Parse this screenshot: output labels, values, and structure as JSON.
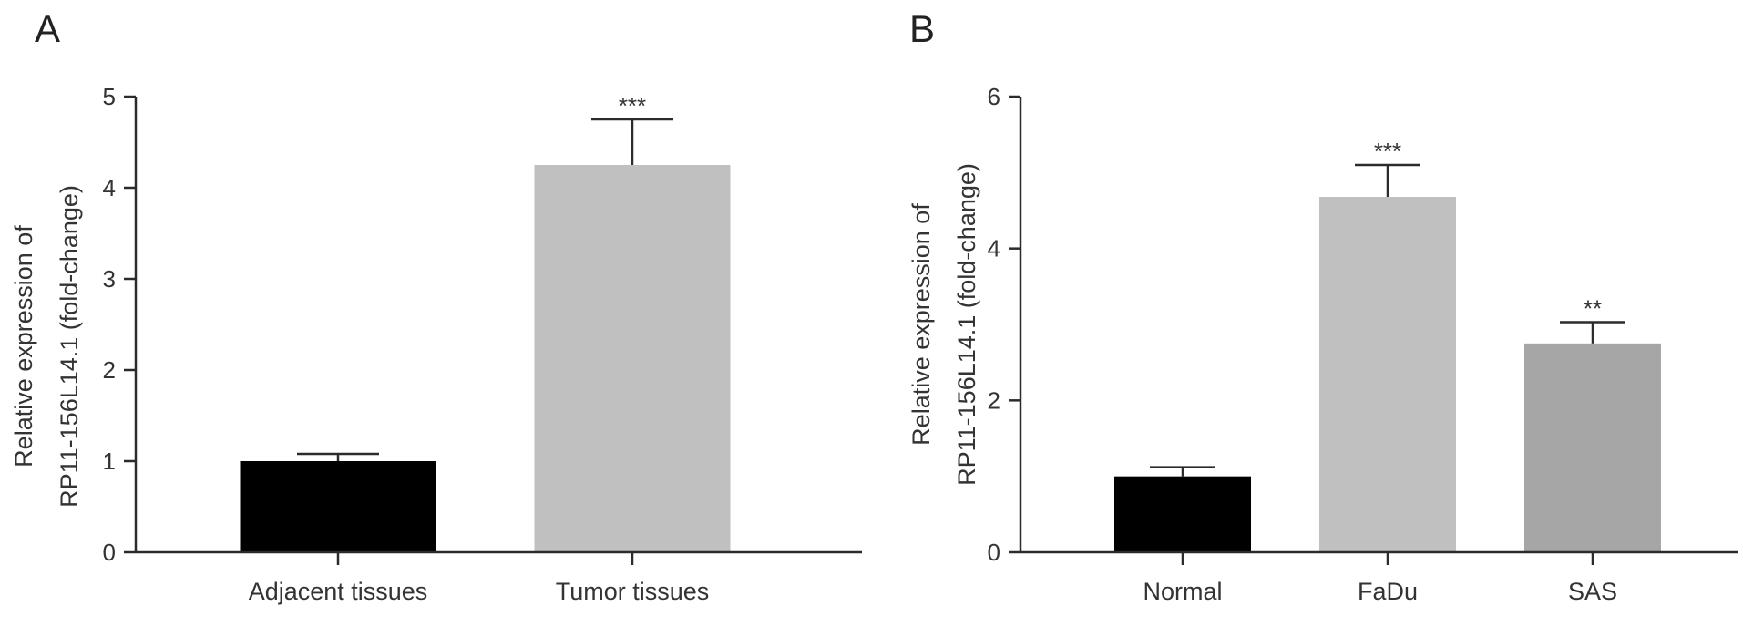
{
  "chart_data": [
    {
      "panel_label": "A",
      "type": "bar",
      "categories": [
        "Adjacent tissues",
        "Tumor tissues"
      ],
      "values": [
        1.0,
        4.25
      ],
      "errors": [
        0.08,
        0.5
      ],
      "significance": [
        "",
        "***"
      ],
      "bar_colors": [
        "#000000",
        "#c0c0c0"
      ],
      "ylabel_lines": [
        "Relative expression of",
        "RP11-156L14.1 (fold-change)"
      ],
      "xlabel": "",
      "ylim": [
        0,
        5
      ],
      "yticks": [
        0,
        1,
        2,
        3,
        4,
        5
      ],
      "grid": false
    },
    {
      "panel_label": "B",
      "type": "bar",
      "categories": [
        "Normal",
        "FaDu",
        "SAS"
      ],
      "values": [
        1.0,
        4.68,
        2.75
      ],
      "errors": [
        0.12,
        0.42,
        0.28
      ],
      "significance": [
        "",
        "***",
        "**"
      ],
      "bar_colors": [
        "#000000",
        "#c0c0c0",
        "#a6a6a6"
      ],
      "ylabel_lines": [
        "Relative expression of",
        "RP11-156L14.1 (fold-change)"
      ],
      "xlabel": "",
      "ylim": [
        0,
        6
      ],
      "yticks": [
        0,
        2,
        4,
        6
      ],
      "grid": false
    }
  ]
}
